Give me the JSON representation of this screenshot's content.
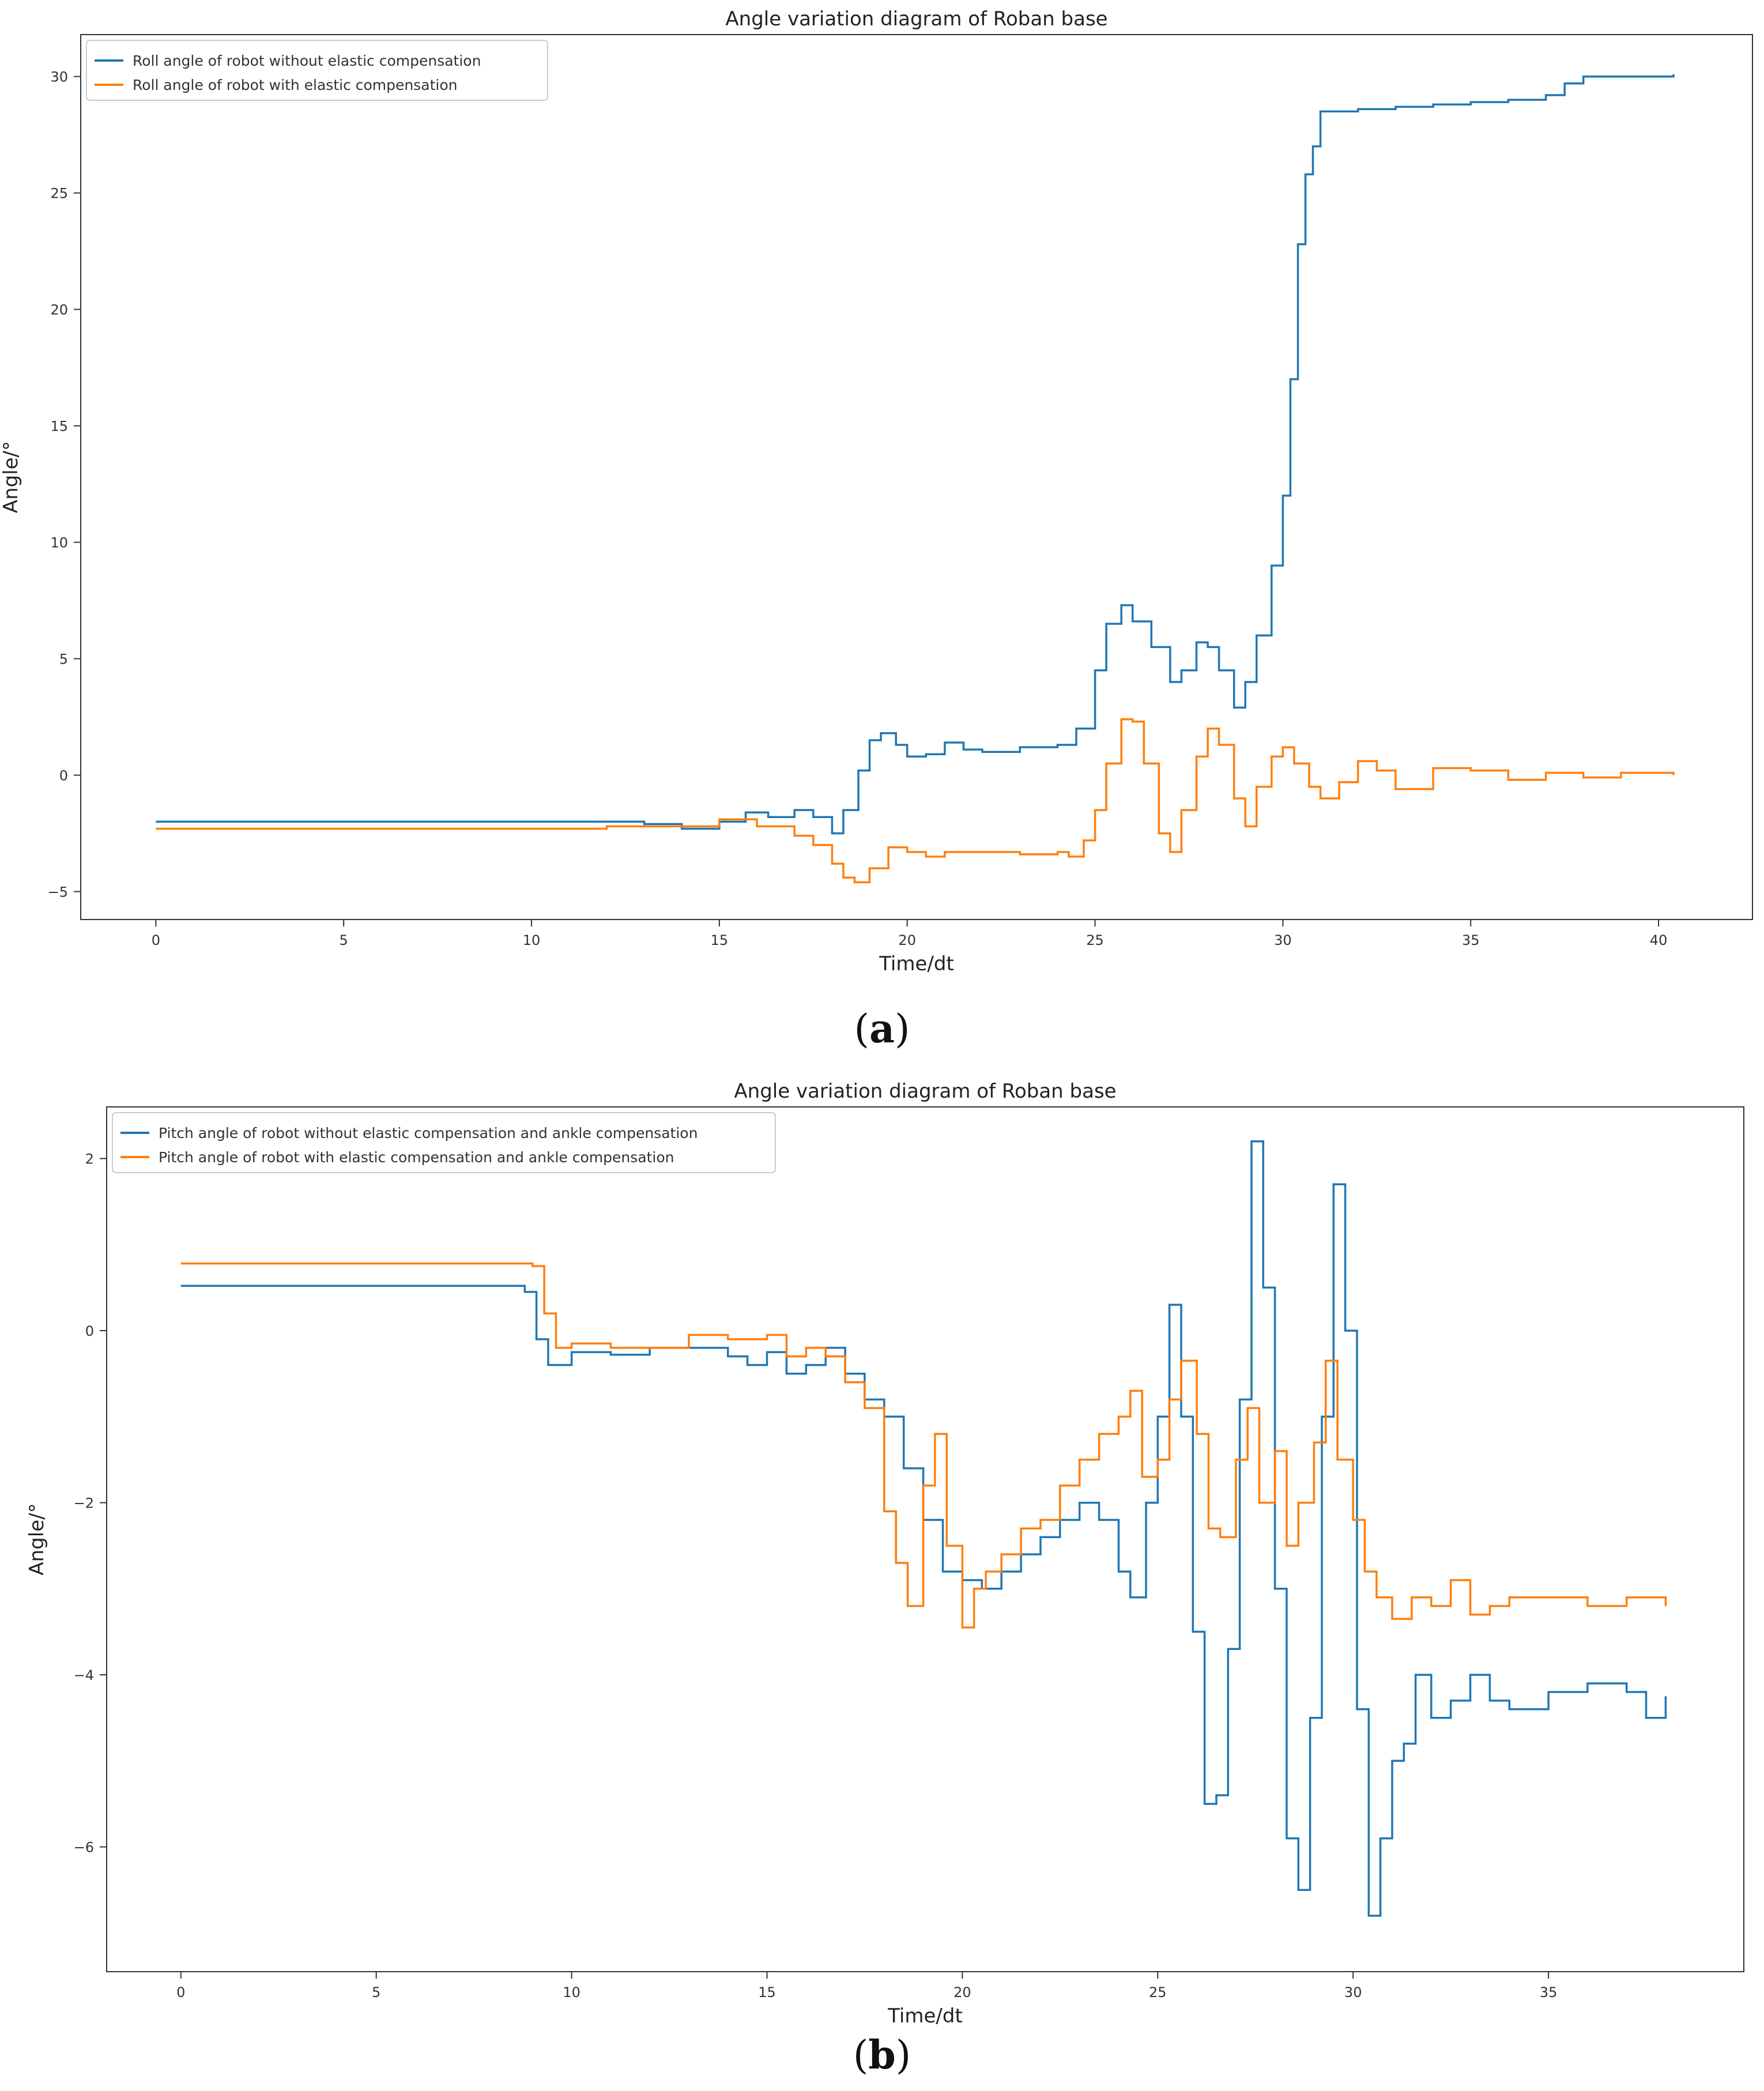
{
  "chart_data": [
    {
      "type": "line",
      "title": "Angle variation diagram of Roban base",
      "xlabel": "Time/dt",
      "ylabel": "Angle/°",
      "xlim": [
        -2,
        42.5
      ],
      "ylim": [
        -6.2,
        31.8
      ],
      "xticks": [
        0,
        5,
        10,
        15,
        20,
        25,
        30,
        35,
        40
      ],
      "yticks": [
        -5,
        0,
        5,
        10,
        15,
        20,
        25,
        30
      ],
      "grid": false,
      "legend": "top-left",
      "caption_letter": "a",
      "series": [
        {
          "name": "Roll angle of robot without elastic compensation",
          "color": "#1f77b4",
          "x": [
            0,
            9,
            13,
            14,
            15,
            15.7,
            16.3,
            17,
            17.5,
            18,
            18.3,
            18.7,
            19,
            19.3,
            19.7,
            20,
            20.5,
            21,
            21.5,
            22,
            23,
            24,
            24.5,
            25,
            25.3,
            25.7,
            26,
            26.5,
            27,
            27.3,
            27.7,
            28,
            28.3,
            28.7,
            29,
            29.3,
            29.7,
            30,
            30.2,
            30.4,
            30.6,
            30.8,
            31,
            32,
            33,
            34,
            35,
            36,
            37,
            37.5,
            38,
            39,
            40.4
          ],
          "y": [
            -2,
            -2,
            -2.1,
            -2.3,
            -2,
            -1.6,
            -1.8,
            -1.5,
            -1.8,
            -2.5,
            -1.5,
            0.2,
            1.5,
            1.8,
            1.3,
            0.8,
            0.9,
            1.4,
            1.1,
            1.0,
            1.2,
            1.3,
            2.0,
            4.5,
            6.5,
            7.3,
            6.6,
            5.5,
            4.0,
            4.5,
            5.7,
            5.5,
            4.5,
            2.9,
            4.0,
            6.0,
            9.0,
            12.0,
            17.0,
            22.8,
            25.8,
            27.0,
            28.5,
            28.6,
            28.7,
            28.8,
            28.9,
            29.0,
            29.2,
            29.7,
            30.0,
            30.0,
            30.1
          ]
        },
        {
          "name": "Roll angle of robot with elastic compensation",
          "color": "#ff7f0e",
          "x": [
            0,
            9,
            12,
            14,
            15,
            16,
            17,
            17.5,
            18,
            18.3,
            18.6,
            19,
            19.5,
            20,
            20.5,
            21,
            22,
            23,
            24,
            24.3,
            24.7,
            25,
            25.3,
            25.7,
            26,
            26.3,
            26.7,
            27,
            27.3,
            27.7,
            28,
            28.3,
            28.7,
            29,
            29.3,
            29.7,
            30,
            30.3,
            30.7,
            31,
            31.5,
            32,
            32.5,
            33,
            34,
            35,
            36,
            37,
            38,
            39,
            40.4
          ],
          "y": [
            -2.3,
            -2.3,
            -2.2,
            -2.2,
            -1.9,
            -2.2,
            -2.6,
            -3.0,
            -3.8,
            -4.4,
            -4.6,
            -4.0,
            -3.1,
            -3.3,
            -3.5,
            -3.3,
            -3.3,
            -3.4,
            -3.3,
            -3.5,
            -2.8,
            -1.5,
            0.5,
            2.4,
            2.3,
            0.5,
            -2.5,
            -3.3,
            -1.5,
            0.8,
            2.0,
            1.3,
            -1.0,
            -2.2,
            -0.5,
            0.8,
            1.2,
            0.5,
            -0.5,
            -1.0,
            -0.3,
            0.6,
            0.2,
            -0.6,
            0.3,
            0.2,
            -0.2,
            0.1,
            -0.1,
            0.1,
            0.0
          ]
        }
      ]
    },
    {
      "type": "line",
      "title": "Angle variation diagram of Roban base",
      "xlabel": "Time/dt",
      "ylabel": "Angle/°",
      "xlim": [
        -1.9,
        40
      ],
      "ylim": [
        -7.45,
        2.6
      ],
      "xticks": [
        0,
        5,
        10,
        15,
        20,
        25,
        30,
        35
      ],
      "yticks": [
        -6,
        -4,
        -2,
        0,
        2
      ],
      "grid": false,
      "legend": "top-left",
      "caption_letter": "b",
      "series": [
        {
          "name": "Pitch angle of robot without elastic compensation and ankle compensation",
          "color": "#1f77b4",
          "x": [
            0,
            8.8,
            9.1,
            9.4,
            10,
            11,
            12,
            13,
            14,
            14.5,
            15,
            15.5,
            16,
            16.5,
            17,
            17.5,
            18,
            18.5,
            19,
            19.5,
            20,
            20.5,
            21,
            21.5,
            22,
            22.5,
            23,
            23.5,
            24,
            24.3,
            24.7,
            25,
            25.3,
            25.6,
            25.9,
            26.2,
            26.5,
            26.8,
            27.1,
            27.4,
            27.7,
            28,
            28.3,
            28.6,
            28.9,
            29.2,
            29.5,
            29.8,
            30.1,
            30.4,
            30.7,
            31,
            31.3,
            31.6,
            32,
            32.5,
            33,
            33.5,
            34,
            35,
            36,
            37,
            37.5,
            38
          ],
          "y": [
            0.52,
            0.45,
            -0.1,
            -0.4,
            -0.25,
            -0.28,
            -0.2,
            -0.2,
            -0.3,
            -0.4,
            -0.25,
            -0.5,
            -0.4,
            -0.2,
            -0.5,
            -0.8,
            -1.0,
            -1.6,
            -2.2,
            -2.8,
            -2.9,
            -3.0,
            -2.8,
            -2.6,
            -2.4,
            -2.2,
            -2.0,
            -2.2,
            -2.8,
            -3.1,
            -2.0,
            -1.0,
            0.3,
            -1.0,
            -3.5,
            -5.5,
            -5.4,
            -3.7,
            -0.8,
            2.2,
            0.5,
            -3.0,
            -5.9,
            -6.5,
            -4.5,
            -1.0,
            1.7,
            0.0,
            -4.4,
            -6.8,
            -5.9,
            -5.0,
            -4.8,
            -4.0,
            -4.5,
            -4.3,
            -4.0,
            -4.3,
            -4.4,
            -4.2,
            -4.1,
            -4.2,
            -4.5,
            -4.25
          ]
        },
        {
          "name": "Pitch angle of robot with elastic compensation and ankle compensation",
          "color": "#ff7f0e",
          "x": [
            0,
            9,
            9.3,
            9.6,
            10,
            11,
            12,
            13,
            14,
            15,
            15.5,
            16,
            16.5,
            17,
            17.5,
            18,
            18.3,
            18.6,
            19,
            19.3,
            19.6,
            20,
            20.3,
            20.6,
            21,
            21.5,
            22,
            22.5,
            23,
            23.5,
            24,
            24.3,
            24.6,
            25,
            25.3,
            25.6,
            26,
            26.3,
            26.6,
            27,
            27.3,
            27.6,
            28,
            28.3,
            28.6,
            29,
            29.3,
            29.6,
            30,
            30.3,
            30.6,
            31,
            31.5,
            32,
            32.5,
            33,
            33.5,
            34,
            35,
            36,
            37,
            38
          ],
          "y": [
            0.78,
            0.75,
            0.2,
            -0.2,
            -0.15,
            -0.2,
            -0.2,
            -0.05,
            -0.1,
            -0.05,
            -0.3,
            -0.2,
            -0.3,
            -0.6,
            -0.9,
            -2.1,
            -2.7,
            -3.2,
            -1.8,
            -1.2,
            -2.5,
            -3.45,
            -3.0,
            -2.8,
            -2.6,
            -2.3,
            -2.2,
            -1.8,
            -1.5,
            -1.2,
            -1.0,
            -0.7,
            -1.7,
            -1.5,
            -0.8,
            -0.35,
            -1.2,
            -2.3,
            -2.4,
            -1.5,
            -0.9,
            -2.0,
            -1.4,
            -2.5,
            -2.0,
            -1.3,
            -0.35,
            -1.5,
            -2.2,
            -2.8,
            -3.1,
            -3.35,
            -3.1,
            -3.2,
            -2.9,
            -3.3,
            -3.2,
            -3.1,
            -3.1,
            -3.2,
            -3.1,
            -3.2
          ]
        }
      ]
    }
  ]
}
